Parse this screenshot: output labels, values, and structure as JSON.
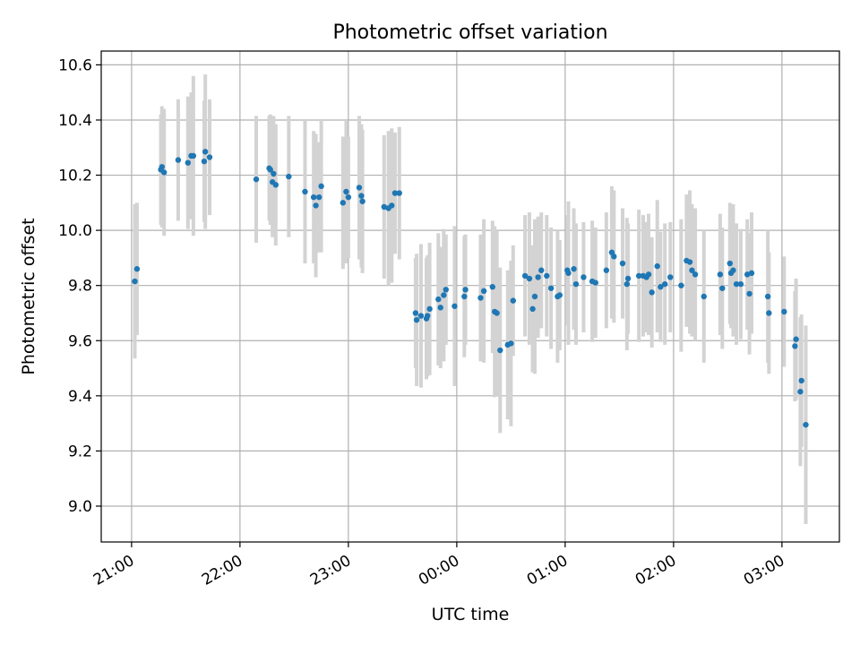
{
  "chart_data": {
    "type": "scatter",
    "title": "Photometric offset variation",
    "xlabel": "UTC time",
    "ylabel": "Photometric offset",
    "x_unit": "hours",
    "x_ticks": [
      {
        "value": 21,
        "label": "21:00"
      },
      {
        "value": 22,
        "label": "22:00"
      },
      {
        "value": 23,
        "label": "23:00"
      },
      {
        "value": 24,
        "label": "00:00"
      },
      {
        "value": 25,
        "label": "01:00"
      },
      {
        "value": 26,
        "label": "02:00"
      },
      {
        "value": 27,
        "label": "03:00"
      }
    ],
    "y_ticks": [
      9.0,
      9.2,
      9.4,
      9.6,
      9.8,
      10.0,
      10.2,
      10.4,
      10.6
    ],
    "xlim": [
      20.72,
      27.53
    ],
    "ylim": [
      8.87,
      10.65
    ],
    "grid": true,
    "legend": "none",
    "colors": {
      "point": "#1f77b4",
      "errorbar": "#d3d3d3"
    },
    "points": [
      {
        "x": 21.03,
        "y": 9.815,
        "err": 0.28
      },
      {
        "x": 21.05,
        "y": 9.86,
        "err": 0.24
      },
      {
        "x": 21.27,
        "y": 10.22,
        "err": 0.2
      },
      {
        "x": 21.28,
        "y": 10.23,
        "err": 0.22
      },
      {
        "x": 21.3,
        "y": 10.21,
        "err": 0.23
      },
      {
        "x": 21.43,
        "y": 10.255,
        "err": 0.22
      },
      {
        "x": 21.52,
        "y": 10.245,
        "err": 0.24
      },
      {
        "x": 21.55,
        "y": 10.27,
        "err": 0.23
      },
      {
        "x": 21.57,
        "y": 10.27,
        "err": 0.29
      },
      {
        "x": 21.67,
        "y": 10.25,
        "err": 0.22
      },
      {
        "x": 21.68,
        "y": 10.285,
        "err": 0.28
      },
      {
        "x": 21.72,
        "y": 10.265,
        "err": 0.21
      },
      {
        "x": 22.15,
        "y": 10.185,
        "err": 0.23
      },
      {
        "x": 22.27,
        "y": 10.225,
        "err": 0.19
      },
      {
        "x": 22.28,
        "y": 10.22,
        "err": 0.2
      },
      {
        "x": 22.3,
        "y": 10.175,
        "err": 0.2
      },
      {
        "x": 22.31,
        "y": 10.205,
        "err": 0.21
      },
      {
        "x": 22.33,
        "y": 10.165,
        "err": 0.22
      },
      {
        "x": 22.45,
        "y": 10.195,
        "err": 0.22
      },
      {
        "x": 22.6,
        "y": 10.14,
        "err": 0.26
      },
      {
        "x": 22.68,
        "y": 10.12,
        "err": 0.24
      },
      {
        "x": 22.7,
        "y": 10.09,
        "err": 0.26
      },
      {
        "x": 22.73,
        "y": 10.12,
        "err": 0.2
      },
      {
        "x": 22.75,
        "y": 10.16,
        "err": 0.24
      },
      {
        "x": 22.95,
        "y": 10.1,
        "err": 0.24
      },
      {
        "x": 22.98,
        "y": 10.14,
        "err": 0.26
      },
      {
        "x": 23.0,
        "y": 10.12,
        "err": 0.22
      },
      {
        "x": 23.1,
        "y": 10.155,
        "err": 0.26
      },
      {
        "x": 23.12,
        "y": 10.125,
        "err": 0.26
      },
      {
        "x": 23.13,
        "y": 10.105,
        "err": 0.26
      },
      {
        "x": 23.33,
        "y": 10.085,
        "err": 0.26
      },
      {
        "x": 23.37,
        "y": 10.08,
        "err": 0.28
      },
      {
        "x": 23.4,
        "y": 10.09,
        "err": 0.28
      },
      {
        "x": 23.43,
        "y": 10.135,
        "err": 0.22
      },
      {
        "x": 23.47,
        "y": 10.135,
        "err": 0.24
      },
      {
        "x": 23.62,
        "y": 9.7,
        "err": 0.2
      },
      {
        "x": 23.63,
        "y": 9.675,
        "err": 0.24
      },
      {
        "x": 23.67,
        "y": 9.69,
        "err": 0.26
      },
      {
        "x": 23.72,
        "y": 9.68,
        "err": 0.22
      },
      {
        "x": 23.73,
        "y": 9.69,
        "err": 0.22
      },
      {
        "x": 23.75,
        "y": 9.715,
        "err": 0.24
      },
      {
        "x": 23.83,
        "y": 9.75,
        "err": 0.24
      },
      {
        "x": 23.85,
        "y": 9.72,
        "err": 0.22
      },
      {
        "x": 23.88,
        "y": 9.765,
        "err": 0.24
      },
      {
        "x": 23.9,
        "y": 9.785,
        "err": 0.2
      },
      {
        "x": 23.98,
        "y": 9.725,
        "err": 0.29
      },
      {
        "x": 24.07,
        "y": 9.76,
        "err": 0.22
      },
      {
        "x": 24.08,
        "y": 9.785,
        "err": 0.2
      },
      {
        "x": 24.22,
        "y": 9.755,
        "err": 0.23
      },
      {
        "x": 24.25,
        "y": 9.78,
        "err": 0.26
      },
      {
        "x": 24.33,
        "y": 9.795,
        "err": 0.24
      },
      {
        "x": 24.35,
        "y": 9.705,
        "err": 0.31
      },
      {
        "x": 24.37,
        "y": 9.7,
        "err": 0.3
      },
      {
        "x": 24.4,
        "y": 9.565,
        "err": 0.3
      },
      {
        "x": 24.47,
        "y": 9.585,
        "err": 0.27
      },
      {
        "x": 24.5,
        "y": 9.59,
        "err": 0.3
      },
      {
        "x": 24.52,
        "y": 9.745,
        "err": 0.2
      },
      {
        "x": 24.63,
        "y": 9.835,
        "err": 0.22
      },
      {
        "x": 24.67,
        "y": 9.825,
        "err": 0.24
      },
      {
        "x": 24.7,
        "y": 9.715,
        "err": 0.23
      },
      {
        "x": 24.72,
        "y": 9.76,
        "err": 0.28
      },
      {
        "x": 24.75,
        "y": 9.83,
        "err": 0.22
      },
      {
        "x": 24.78,
        "y": 9.855,
        "err": 0.21
      },
      {
        "x": 24.83,
        "y": 9.835,
        "err": 0.22
      },
      {
        "x": 24.87,
        "y": 9.79,
        "err": 0.22
      },
      {
        "x": 24.93,
        "y": 9.76,
        "err": 0.24
      },
      {
        "x": 24.95,
        "y": 9.765,
        "err": 0.2
      },
      {
        "x": 25.02,
        "y": 9.855,
        "err": 0.2
      },
      {
        "x": 25.03,
        "y": 9.845,
        "err": 0.26
      },
      {
        "x": 25.08,
        "y": 9.86,
        "err": 0.22
      },
      {
        "x": 25.1,
        "y": 9.805,
        "err": 0.22
      },
      {
        "x": 25.17,
        "y": 9.83,
        "err": 0.2
      },
      {
        "x": 25.25,
        "y": 9.815,
        "err": 0.22
      },
      {
        "x": 25.28,
        "y": 9.81,
        "err": 0.2
      },
      {
        "x": 25.38,
        "y": 9.855,
        "err": 0.21
      },
      {
        "x": 25.43,
        "y": 9.92,
        "err": 0.24
      },
      {
        "x": 25.45,
        "y": 9.905,
        "err": 0.24
      },
      {
        "x": 25.53,
        "y": 9.88,
        "err": 0.2
      },
      {
        "x": 25.57,
        "y": 9.805,
        "err": 0.24
      },
      {
        "x": 25.58,
        "y": 9.825,
        "err": 0.2
      },
      {
        "x": 25.68,
        "y": 9.835,
        "err": 0.24
      },
      {
        "x": 25.72,
        "y": 9.835,
        "err": 0.22
      },
      {
        "x": 25.75,
        "y": 9.83,
        "err": 0.2
      },
      {
        "x": 25.77,
        "y": 9.84,
        "err": 0.22
      },
      {
        "x": 25.8,
        "y": 9.775,
        "err": 0.2
      },
      {
        "x": 25.85,
        "y": 9.87,
        "err": 0.24
      },
      {
        "x": 25.88,
        "y": 9.795,
        "err": 0.2
      },
      {
        "x": 25.92,
        "y": 9.805,
        "err": 0.22
      },
      {
        "x": 25.97,
        "y": 9.83,
        "err": 0.2
      },
      {
        "x": 26.07,
        "y": 9.8,
        "err": 0.24
      },
      {
        "x": 26.12,
        "y": 9.89,
        "err": 0.24
      },
      {
        "x": 26.15,
        "y": 9.885,
        "err": 0.26
      },
      {
        "x": 26.17,
        "y": 9.855,
        "err": 0.24
      },
      {
        "x": 26.2,
        "y": 9.84,
        "err": 0.24
      },
      {
        "x": 26.28,
        "y": 9.76,
        "err": 0.24
      },
      {
        "x": 26.43,
        "y": 9.84,
        "err": 0.22
      },
      {
        "x": 26.45,
        "y": 9.79,
        "err": 0.22
      },
      {
        "x": 26.52,
        "y": 9.88,
        "err": 0.22
      },
      {
        "x": 26.53,
        "y": 9.845,
        "err": 0.2
      },
      {
        "x": 26.55,
        "y": 9.855,
        "err": 0.24
      },
      {
        "x": 26.58,
        "y": 9.805,
        "err": 0.22
      },
      {
        "x": 26.62,
        "y": 9.805,
        "err": 0.2
      },
      {
        "x": 26.68,
        "y": 9.84,
        "err": 0.2
      },
      {
        "x": 26.7,
        "y": 9.77,
        "err": 0.22
      },
      {
        "x": 26.72,
        "y": 9.845,
        "err": 0.22
      },
      {
        "x": 26.87,
        "y": 9.76,
        "err": 0.24
      },
      {
        "x": 26.88,
        "y": 9.7,
        "err": 0.22
      },
      {
        "x": 27.02,
        "y": 9.705,
        "err": 0.2
      },
      {
        "x": 27.12,
        "y": 9.58,
        "err": 0.2
      },
      {
        "x": 27.13,
        "y": 9.605,
        "err": 0.22
      },
      {
        "x": 27.17,
        "y": 9.415,
        "err": 0.27
      },
      {
        "x": 27.18,
        "y": 9.455,
        "err": 0.24
      },
      {
        "x": 27.22,
        "y": 9.295,
        "err": 0.36
      }
    ]
  }
}
